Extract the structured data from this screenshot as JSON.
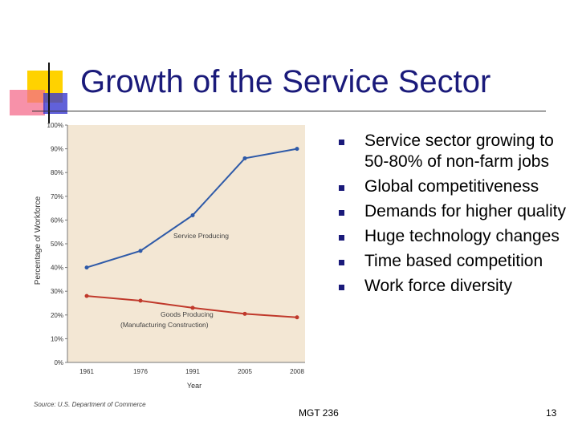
{
  "slide": {
    "title": "Growth of the Service Sector",
    "footer_center": "MGT 236",
    "page_number": "13",
    "accent_color": "#1a1a7a",
    "bullets": [
      "Service sector growing to 50-80% of non-farm jobs",
      "Global competitiveness",
      "Demands for higher quality",
      "Huge technology changes",
      "Time based competition",
      "Work force diversity"
    ]
  },
  "chart_data": {
    "type": "line",
    "x": [
      "1961",
      "1976",
      "1991",
      "2005",
      "2008"
    ],
    "xlabel": "Year",
    "ylabel": "Percentage of Workforce",
    "ylim": [
      0,
      100
    ],
    "yticks": [
      "0%",
      "10%",
      "20%",
      "30%",
      "40%",
      "50%",
      "60%",
      "70%",
      "80%",
      "90%",
      "100%"
    ],
    "grid": false,
    "source": "Source: U.S. Department of Commerce",
    "series": [
      {
        "name": "Service Producing",
        "values": [
          40,
          47,
          62,
          86,
          90
        ],
        "color": "#2e5aa8"
      },
      {
        "name": "Goods Producing\n(Manufacturing Construction)",
        "values": [
          28,
          26,
          23,
          20.5,
          19
        ],
        "color": "#c0392b"
      }
    ],
    "background": "#f3e7d4"
  }
}
